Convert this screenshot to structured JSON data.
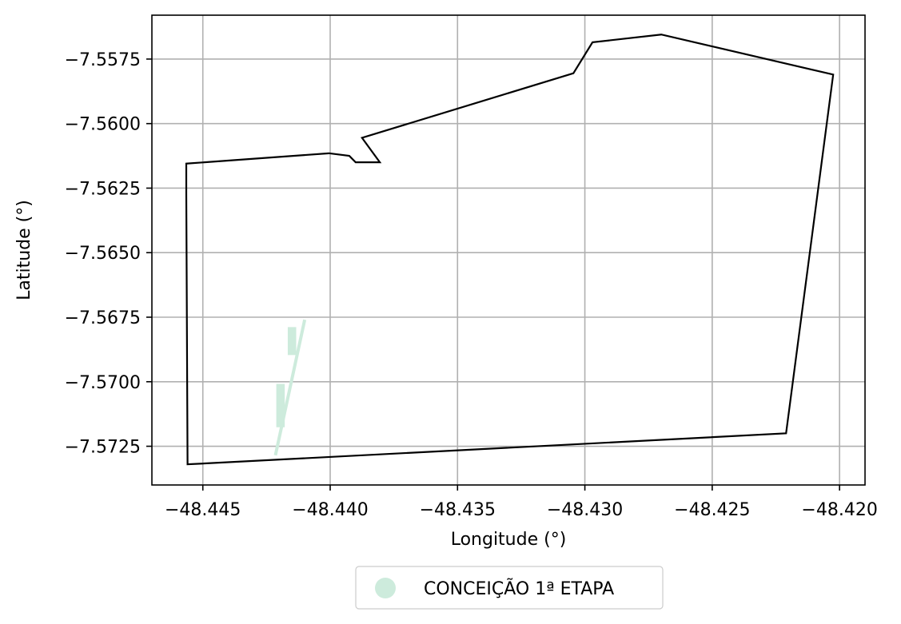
{
  "chart_data": {
    "type": "map",
    "xlabel": "Longitude (°)",
    "ylabel": "Latitude (°)",
    "xlim": [
      -48.447,
      -48.419
    ],
    "ylim": [
      -7.574,
      -7.5558
    ],
    "grid": true,
    "x_ticks": [
      {
        "value": -48.445,
        "label": "−48.445"
      },
      {
        "value": -48.44,
        "label": "−48.440"
      },
      {
        "value": -48.435,
        "label": "−48.435"
      },
      {
        "value": -48.43,
        "label": "−48.430"
      },
      {
        "value": -48.425,
        "label": "−48.425"
      },
      {
        "value": -48.42,
        "label": "−48.420"
      }
    ],
    "y_ticks": [
      {
        "value": -7.5575,
        "label": "−7.5575"
      },
      {
        "value": -7.56,
        "label": "−7.5600"
      },
      {
        "value": -7.5625,
        "label": "−7.5625"
      },
      {
        "value": -7.565,
        "label": "−7.5650"
      },
      {
        "value": -7.5675,
        "label": "−7.5675"
      },
      {
        "value": -7.57,
        "label": "−7.5700"
      },
      {
        "value": -7.5725,
        "label": "−7.5725"
      }
    ],
    "boundary": {
      "color": "#000000",
      "points": [
        [
          -48.44565,
          -7.56155
        ],
        [
          -48.44005,
          -7.56115
        ],
        [
          -48.43925,
          -7.56125
        ],
        [
          -48.439,
          -7.5615
        ],
        [
          -48.43805,
          -7.5615
        ],
        [
          -48.43875,
          -7.56055
        ],
        [
          -48.43045,
          -7.55805
        ],
        [
          -48.4297,
          -7.55685
        ],
        [
          -48.427,
          -7.55655
        ],
        [
          -48.42025,
          -7.5581
        ],
        [
          -48.4221,
          -7.572
        ],
        [
          -48.4456,
          -7.5732
        ],
        [
          -48.44565,
          -7.5627
        ]
      ]
    },
    "series": [
      {
        "name": "CONCEIÇÃO 1ª ETAPA",
        "color": "#cdebdc",
        "lines": [
          [
            [
              -48.44215,
              -7.57285
            ],
            [
              -48.441,
              -7.5676
            ]
          ]
        ],
        "patches": [
          [
            [
              -48.4421,
              -7.5701
            ],
            [
              -48.4418,
              -7.5701
            ],
            [
              -48.4418,
              -7.57175
            ],
            [
              -48.4421,
              -7.57175
            ]
          ],
          [
            [
              -48.44165,
              -7.5679
            ],
            [
              -48.44135,
              -7.5679
            ],
            [
              -48.44135,
              -7.56895
            ],
            [
              -48.44165,
              -7.56895
            ]
          ]
        ]
      }
    ],
    "legend": {
      "position": "bottom-center",
      "entries": [
        {
          "label": "CONCEIÇÃO 1ª ETAPA",
          "color": "#cdebdc",
          "marker": "circle"
        }
      ]
    }
  }
}
